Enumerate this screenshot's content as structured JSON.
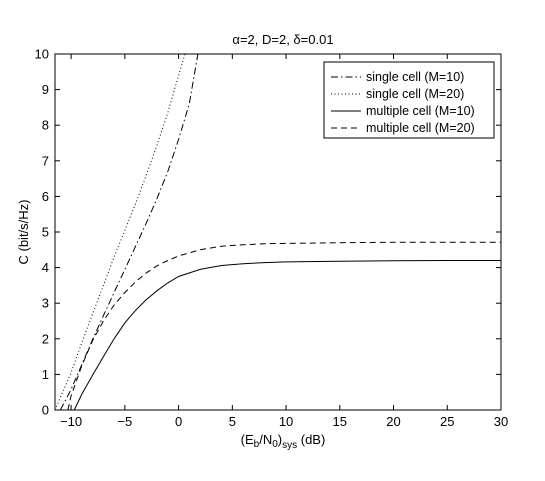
{
  "chart_data": {
    "type": "line",
    "title": {
      "alpha": "α",
      "text1": "=2, D=2, ",
      "delta": "δ",
      "text2": "=0.01"
    },
    "xlabel": {
      "open": "(E",
      "b": "b",
      "slash": "/N",
      "zero": "0",
      "close": ")",
      "sys": "sys",
      "unit": " (dB)"
    },
    "ylabel": "C (bit/s/Hz)",
    "xlim": [
      -11.5,
      30
    ],
    "ylim": [
      0,
      10
    ],
    "xticks": [
      -10,
      -5,
      0,
      5,
      10,
      15,
      20,
      25,
      30
    ],
    "xtick_labels": [
      "−10",
      "−5",
      "0",
      "5",
      "10",
      "15",
      "20",
      "25",
      "30"
    ],
    "yticks": [
      0,
      1,
      2,
      3,
      4,
      5,
      6,
      7,
      8,
      9,
      10
    ],
    "ytick_labels": [
      "0",
      "1",
      "2",
      "3",
      "4",
      "5",
      "6",
      "7",
      "8",
      "9",
      "10"
    ],
    "grid": false,
    "legend_position": "top-right",
    "series": [
      {
        "name": "single cell (M=10)",
        "style": "dashdot",
        "x": [
          -11.0,
          -10,
          -9,
          -8,
          -7,
          -6,
          -5,
          -4,
          -3,
          -2,
          -1,
          0,
          1,
          1.8
        ],
        "y": [
          0,
          0.58,
          1.28,
          1.98,
          2.65,
          3.3,
          3.95,
          4.6,
          5.25,
          5.95,
          6.7,
          7.6,
          8.6,
          10.0
        ]
      },
      {
        "name": "single cell (M=20)",
        "style": "dotted",
        "x": [
          -11.5,
          -10,
          -9,
          -8,
          -7,
          -6,
          -5,
          -4,
          -3,
          -2,
          -1,
          0,
          0.6
        ],
        "y": [
          0,
          1.05,
          1.9,
          2.7,
          3.5,
          4.3,
          5.05,
          5.8,
          6.6,
          7.45,
          8.35,
          9.4,
          10.0
        ]
      },
      {
        "name": "multiple cell (M=10)",
        "style": "solid",
        "x": [
          -9.7,
          -9,
          -8,
          -7,
          -6,
          -5,
          -4,
          -3,
          -2,
          -1,
          0,
          2,
          4,
          6,
          8,
          10,
          15,
          20,
          25,
          30
        ],
        "y": [
          0,
          0.45,
          0.98,
          1.5,
          2.0,
          2.45,
          2.8,
          3.1,
          3.35,
          3.57,
          3.75,
          3.95,
          4.06,
          4.11,
          4.14,
          4.16,
          4.18,
          4.19,
          4.2,
          4.2
        ]
      },
      {
        "name": "multiple cell (M=20)",
        "style": "dashed",
        "x": [
          -10.3,
          -10,
          -9,
          -8,
          -7,
          -6,
          -5,
          -4,
          -3,
          -2,
          -1,
          0,
          2,
          4,
          6,
          8,
          10,
          15,
          20,
          25,
          30
        ],
        "y": [
          0,
          0.4,
          1.25,
          1.95,
          2.5,
          2.95,
          3.3,
          3.6,
          3.85,
          4.05,
          4.2,
          4.33,
          4.5,
          4.6,
          4.64,
          4.67,
          4.68,
          4.7,
          4.71,
          4.71,
          4.71
        ]
      }
    ]
  }
}
